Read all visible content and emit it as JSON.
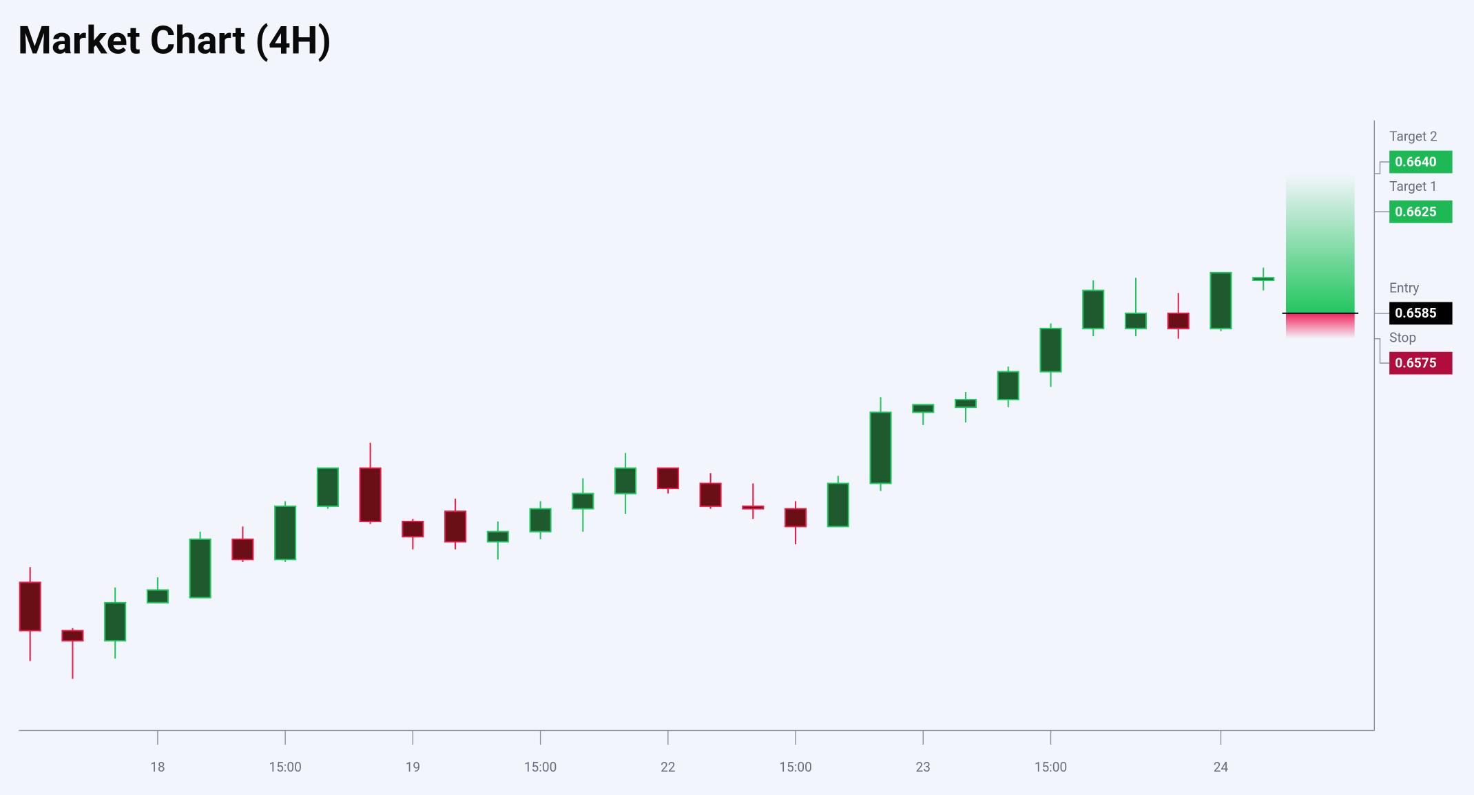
{
  "chart_data": {
    "type": "candlestick",
    "title": "Market Chart (4H)",
    "categories": [
      null,
      null,
      null,
      "18",
      null,
      null,
      "15:00",
      null,
      null,
      "19",
      null,
      null,
      "15:00",
      null,
      null,
      "22",
      null,
      null,
      "15:00",
      null,
      null,
      "23",
      null,
      null,
      "15:00",
      null,
      null,
      null,
      "24",
      null
    ],
    "open": [
      0.6479,
      0.646,
      0.6456,
      0.6471,
      0.6473,
      0.6496,
      0.6488,
      0.6509,
      0.6524,
      0.6503,
      0.6507,
      0.6495,
      0.6499,
      0.6508,
      0.6514,
      0.6524,
      0.6518,
      0.6509,
      0.6508,
      0.6501,
      0.6518,
      0.6546,
      0.6548,
      0.6551,
      0.6562,
      0.6579,
      0.6579,
      0.6585,
      0.6579,
      0.6598
    ],
    "high": [
      0.6485,
      0.6461,
      0.6477,
      0.6481,
      0.6499,
      0.6501,
      0.6511,
      0.6524,
      0.6534,
      0.6504,
      0.6512,
      0.6503,
      0.6511,
      0.652,
      0.653,
      0.6524,
      0.6522,
      0.6518,
      0.6511,
      0.6521,
      0.6552,
      0.6549,
      0.6554,
      0.6564,
      0.6581,
      0.6598,
      0.6599,
      0.6593,
      0.6601,
      0.6603
    ],
    "low": [
      0.6448,
      0.6441,
      0.6449,
      0.6471,
      0.6473,
      0.6487,
      0.6487,
      0.6508,
      0.6502,
      0.6492,
      0.6492,
      0.6488,
      0.6496,
      0.6499,
      0.6506,
      0.6514,
      0.6508,
      0.6504,
      0.6494,
      0.6501,
      0.6515,
      0.6541,
      0.6542,
      0.6548,
      0.6556,
      0.6576,
      0.6576,
      0.6575,
      0.6578,
      0.6594
    ],
    "close": [
      0.646,
      0.6456,
      0.6471,
      0.6476,
      0.6496,
      0.6488,
      0.6509,
      0.6524,
      0.6503,
      0.6497,
      0.6495,
      0.6499,
      0.6508,
      0.6514,
      0.6524,
      0.6516,
      0.6509,
      0.6508,
      0.6501,
      0.6518,
      0.6546,
      0.6549,
      0.6551,
      0.6562,
      0.6579,
      0.6594,
      0.6585,
      0.6579,
      0.6601,
      0.6599
    ],
    "up_color": "#22c55e",
    "up_fill": "#1f5a2f",
    "down_color": "#e11d48",
    "down_fill": "#6b0f16",
    "ylim": [
      0.6421,
      0.6661
    ],
    "levels": [
      {
        "name": "Target 2",
        "price": {
          "value": 0.664,
          "label": "0.6640"
        },
        "color": "#1db954"
      },
      {
        "name": "Target 1",
        "price": 0.6625,
        "color": "#1db954"
      },
      {
        "name": "Entry",
        "price": 0.6585,
        "color": "#000000"
      },
      {
        "name": "Stop",
        "price": 0.6575,
        "color": "#b00d3c"
      }
    ]
  }
}
